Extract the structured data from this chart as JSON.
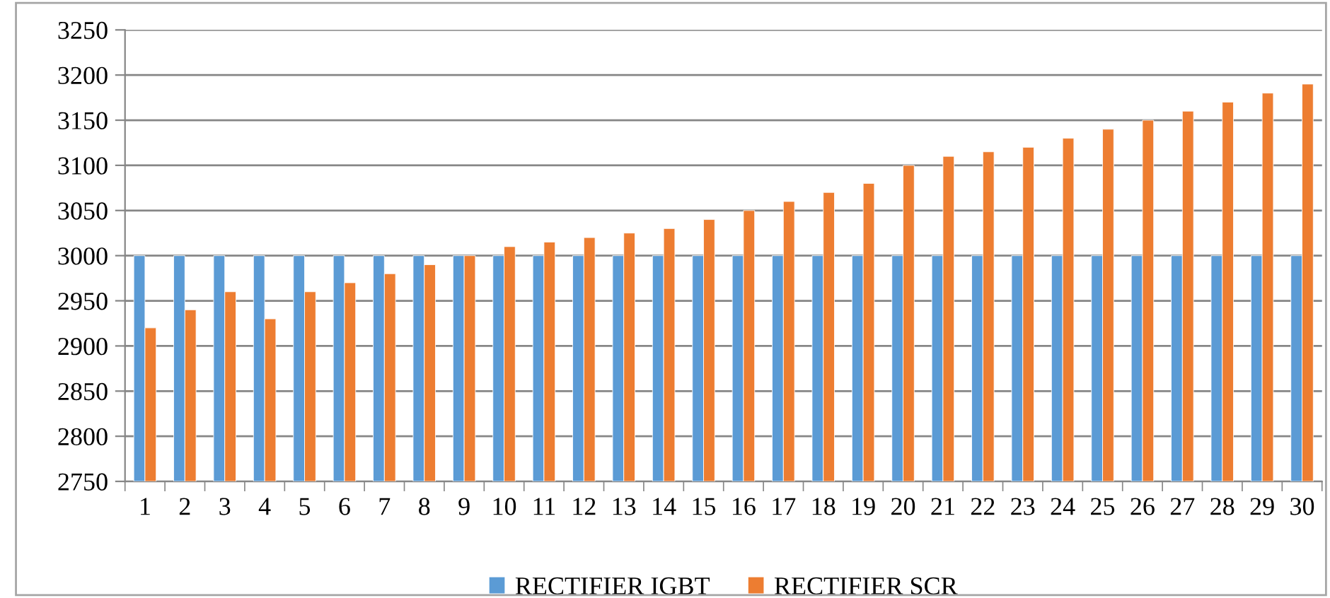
{
  "chart_data": {
    "type": "bar",
    "categories": [
      "1",
      "2",
      "3",
      "4",
      "5",
      "6",
      "7",
      "8",
      "9",
      "10",
      "11",
      "12",
      "13",
      "14",
      "15",
      "16",
      "17",
      "18",
      "19",
      "20",
      "21",
      "22",
      "23",
      "24",
      "25",
      "26",
      "27",
      "28",
      "29",
      "30"
    ],
    "series": [
      {
        "name": "RECTIFIER IGBT",
        "color": "#5b9bd5",
        "values": [
          3000,
          3000,
          3000,
          3000,
          3000,
          3000,
          3000,
          3000,
          3000,
          3000,
          3000,
          3000,
          3000,
          3000,
          3000,
          3000,
          3000,
          3000,
          3000,
          3000,
          3000,
          3000,
          3000,
          3000,
          3000,
          3000,
          3000,
          3000,
          3000,
          3000
        ]
      },
      {
        "name": "RECTIFIER SCR",
        "color": "#ed7d31",
        "values": [
          2920,
          2940,
          2960,
          2930,
          2960,
          2970,
          2980,
          2990,
          3000,
          3010,
          3015,
          3020,
          3025,
          3030,
          3040,
          3050,
          3060,
          3070,
          3080,
          3100,
          3110,
          3115,
          3120,
          3130,
          3140,
          3150,
          3160,
          3170,
          3180,
          3190
        ]
      }
    ],
    "ylim": [
      2750,
      3250
    ],
    "yticks": [
      2750,
      2800,
      2850,
      2900,
      2950,
      3000,
      3050,
      3100,
      3150,
      3200,
      3250
    ],
    "grid": "y",
    "legend": "bottom"
  }
}
